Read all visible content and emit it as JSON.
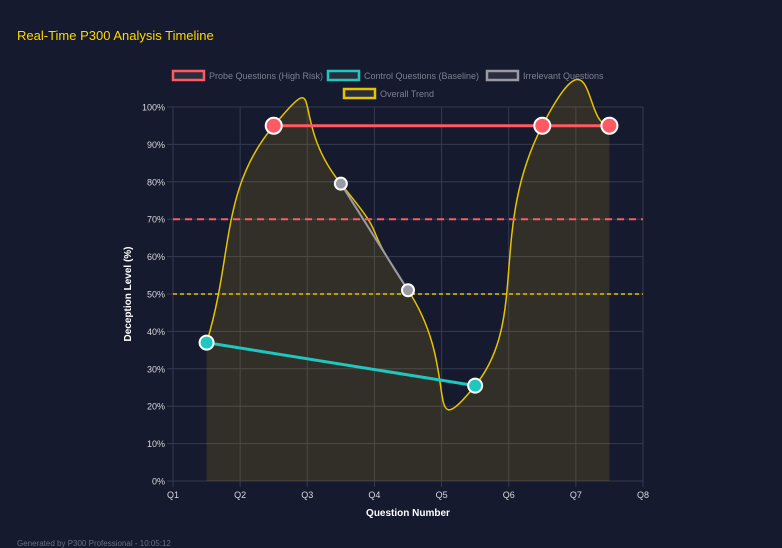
{
  "title": "Real-Time P300 Analysis Timeline",
  "footer": "Generated by P300 Professional - 10:05:12",
  "chart_data": {
    "type": "line",
    "xlabel": "Question Number",
    "ylabel": "Deception Level (%)",
    "xlim": [
      1,
      8
    ],
    "ylim": [
      0,
      100
    ],
    "x_ticks": [
      "Q1",
      "Q2",
      "Q3",
      "Q4",
      "Q5",
      "Q6",
      "Q7",
      "Q8"
    ],
    "y_ticks": [
      "0%",
      "10%",
      "20%",
      "30%",
      "40%",
      "50%",
      "60%",
      "70%",
      "80%",
      "90%",
      "100%"
    ],
    "grid": true,
    "legend_position": "top",
    "series": [
      {
        "name": "Probe Questions (High Risk)",
        "color": "#ff5a64",
        "x": [
          2.5,
          6.5,
          7.5
        ],
        "y": [
          95,
          95,
          95
        ]
      },
      {
        "name": "Control Questions (Baseline)",
        "color": "#1ec8be",
        "x": [
          1.5,
          5.5
        ],
        "y": [
          37,
          25.5
        ]
      },
      {
        "name": "Irrelevant Questions",
        "color": "#9a9aa6",
        "x": [
          3.5,
          4.5
        ],
        "y": [
          79.5,
          51
        ]
      },
      {
        "name": "Overall Trend",
        "color": "#e6c300",
        "fill": true,
        "x": [
          1.5,
          2.5,
          3.5,
          4.5,
          5.5,
          6.5,
          7.5
        ],
        "y": [
          37,
          95,
          79.5,
          51,
          25.5,
          95,
          95
        ]
      }
    ],
    "threshold_lines": [
      {
        "y": 70,
        "color": "#ff5a64",
        "style": "dashed"
      },
      {
        "y": 50,
        "color": "#e6c300",
        "style": "dashed"
      }
    ]
  }
}
